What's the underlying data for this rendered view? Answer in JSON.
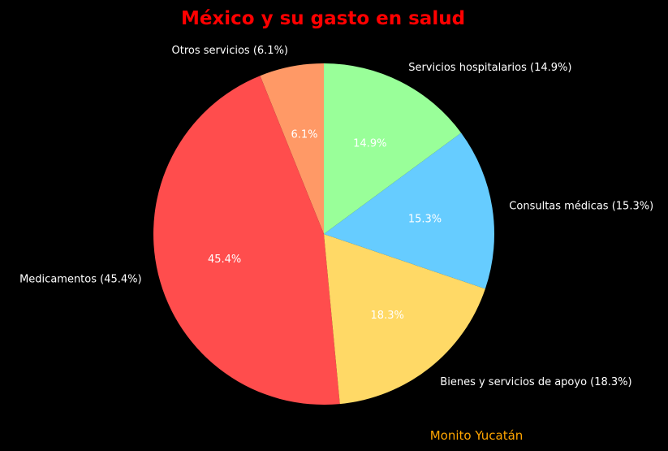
{
  "chart_data": {
    "type": "pie",
    "title": "México y su gasto en salud",
    "title_color": "#FF0000",
    "start": "top, counter-clockwise",
    "slices": [
      {
        "name": "Otros servicios",
        "value": 6.1,
        "pct_label": "6.1%",
        "outer_label": "Otros servicios (6.1%)",
        "color": "#FF9966"
      },
      {
        "name": "Medicamentos",
        "value": 45.4,
        "pct_label": "45.4%",
        "outer_label": "Medicamentos (45.4%)",
        "color": "#FF4D4D"
      },
      {
        "name": "Bienes y servicios de apoyo",
        "value": 18.3,
        "pct_label": "18.3%",
        "outer_label": "Bienes y servicios de apoyo (18.3%)",
        "color": "#FFD966"
      },
      {
        "name": "Consultas médicas",
        "value": 15.3,
        "pct_label": "15.3%",
        "outer_label": "Consultas médicas (15.3%)",
        "color": "#66CCFF"
      },
      {
        "name": "Servicios hospitalarios",
        "value": 14.9,
        "pct_label": "14.9%",
        "outer_label": "Servicios hospitalarios (14.9%)",
        "color": "#99FF99"
      }
    ],
    "background": "#000000",
    "label_color": "#FFFFFF"
  },
  "credit": {
    "text": "Monito Yucatán",
    "color": "#FFA500"
  }
}
